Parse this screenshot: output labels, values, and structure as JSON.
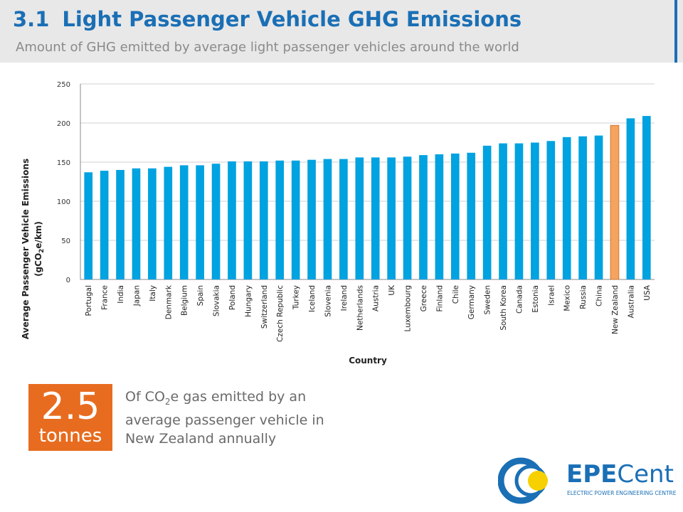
{
  "header": {
    "section_number": "3.1",
    "title": "Light Passenger Vehicle GHG Emissions",
    "subtitle": "Amount of GHG emitted by average light passenger vehicles around the world"
  },
  "callout": {
    "value": "2.5",
    "unit": "tonnes",
    "text_before": "Of CO",
    "text_sub": "2",
    "text_after": "e gas emitted by an average passenger vehicle in New Zealand annually"
  },
  "logo": {
    "brand_part1": "EPE",
    "brand_part2": "Centre",
    "tagline": "ELECTRIC POWER ENGINEERING CENTRE"
  },
  "chart_data": {
    "type": "bar",
    "ylabel_main": "Average Passenger Vehicle Emissions",
    "ylabel_unit_prefix": "(gCO",
    "ylabel_unit_sub": "2",
    "ylabel_unit_suffix": "e/km)",
    "xlabel": "Country",
    "ylim": [
      0,
      250
    ],
    "yticks": [
      0,
      50,
      100,
      150,
      200,
      250
    ],
    "grid": true,
    "categories": [
      "Portugal",
      "France",
      "India",
      "Japan",
      "Italy",
      "Denmark",
      "Belgium",
      "Spain",
      "Slovakia",
      "Poland",
      "Hungary",
      "Switzerland",
      "Czech Republic",
      "Turkey",
      "Iceland",
      "Slovenia",
      "Ireland",
      "Netherlands",
      "Austria",
      "UK",
      "Luxembourg",
      "Greece",
      "Finland",
      "Chile",
      "Germany",
      "Sweden",
      "South Korea",
      "Canada",
      "Estonia",
      "Israel",
      "Mexico",
      "Russia",
      "China",
      "New Zealand",
      "Australia",
      "USA"
    ],
    "values": [
      137,
      139,
      140,
      142,
      142,
      144,
      146,
      146,
      148,
      151,
      151,
      151,
      152,
      152,
      153,
      154,
      154,
      156,
      156,
      156,
      157,
      159,
      160,
      161,
      162,
      171,
      174,
      174,
      175,
      177,
      182,
      183,
      184,
      197,
      206,
      209
    ],
    "highlight": "New Zealand",
    "colors": {
      "bar": "#00a2e0",
      "highlight": "#f5a35e",
      "highlight_stroke": "#c97a3a",
      "grid": "#d0d0d0",
      "axis": "#888888"
    }
  }
}
